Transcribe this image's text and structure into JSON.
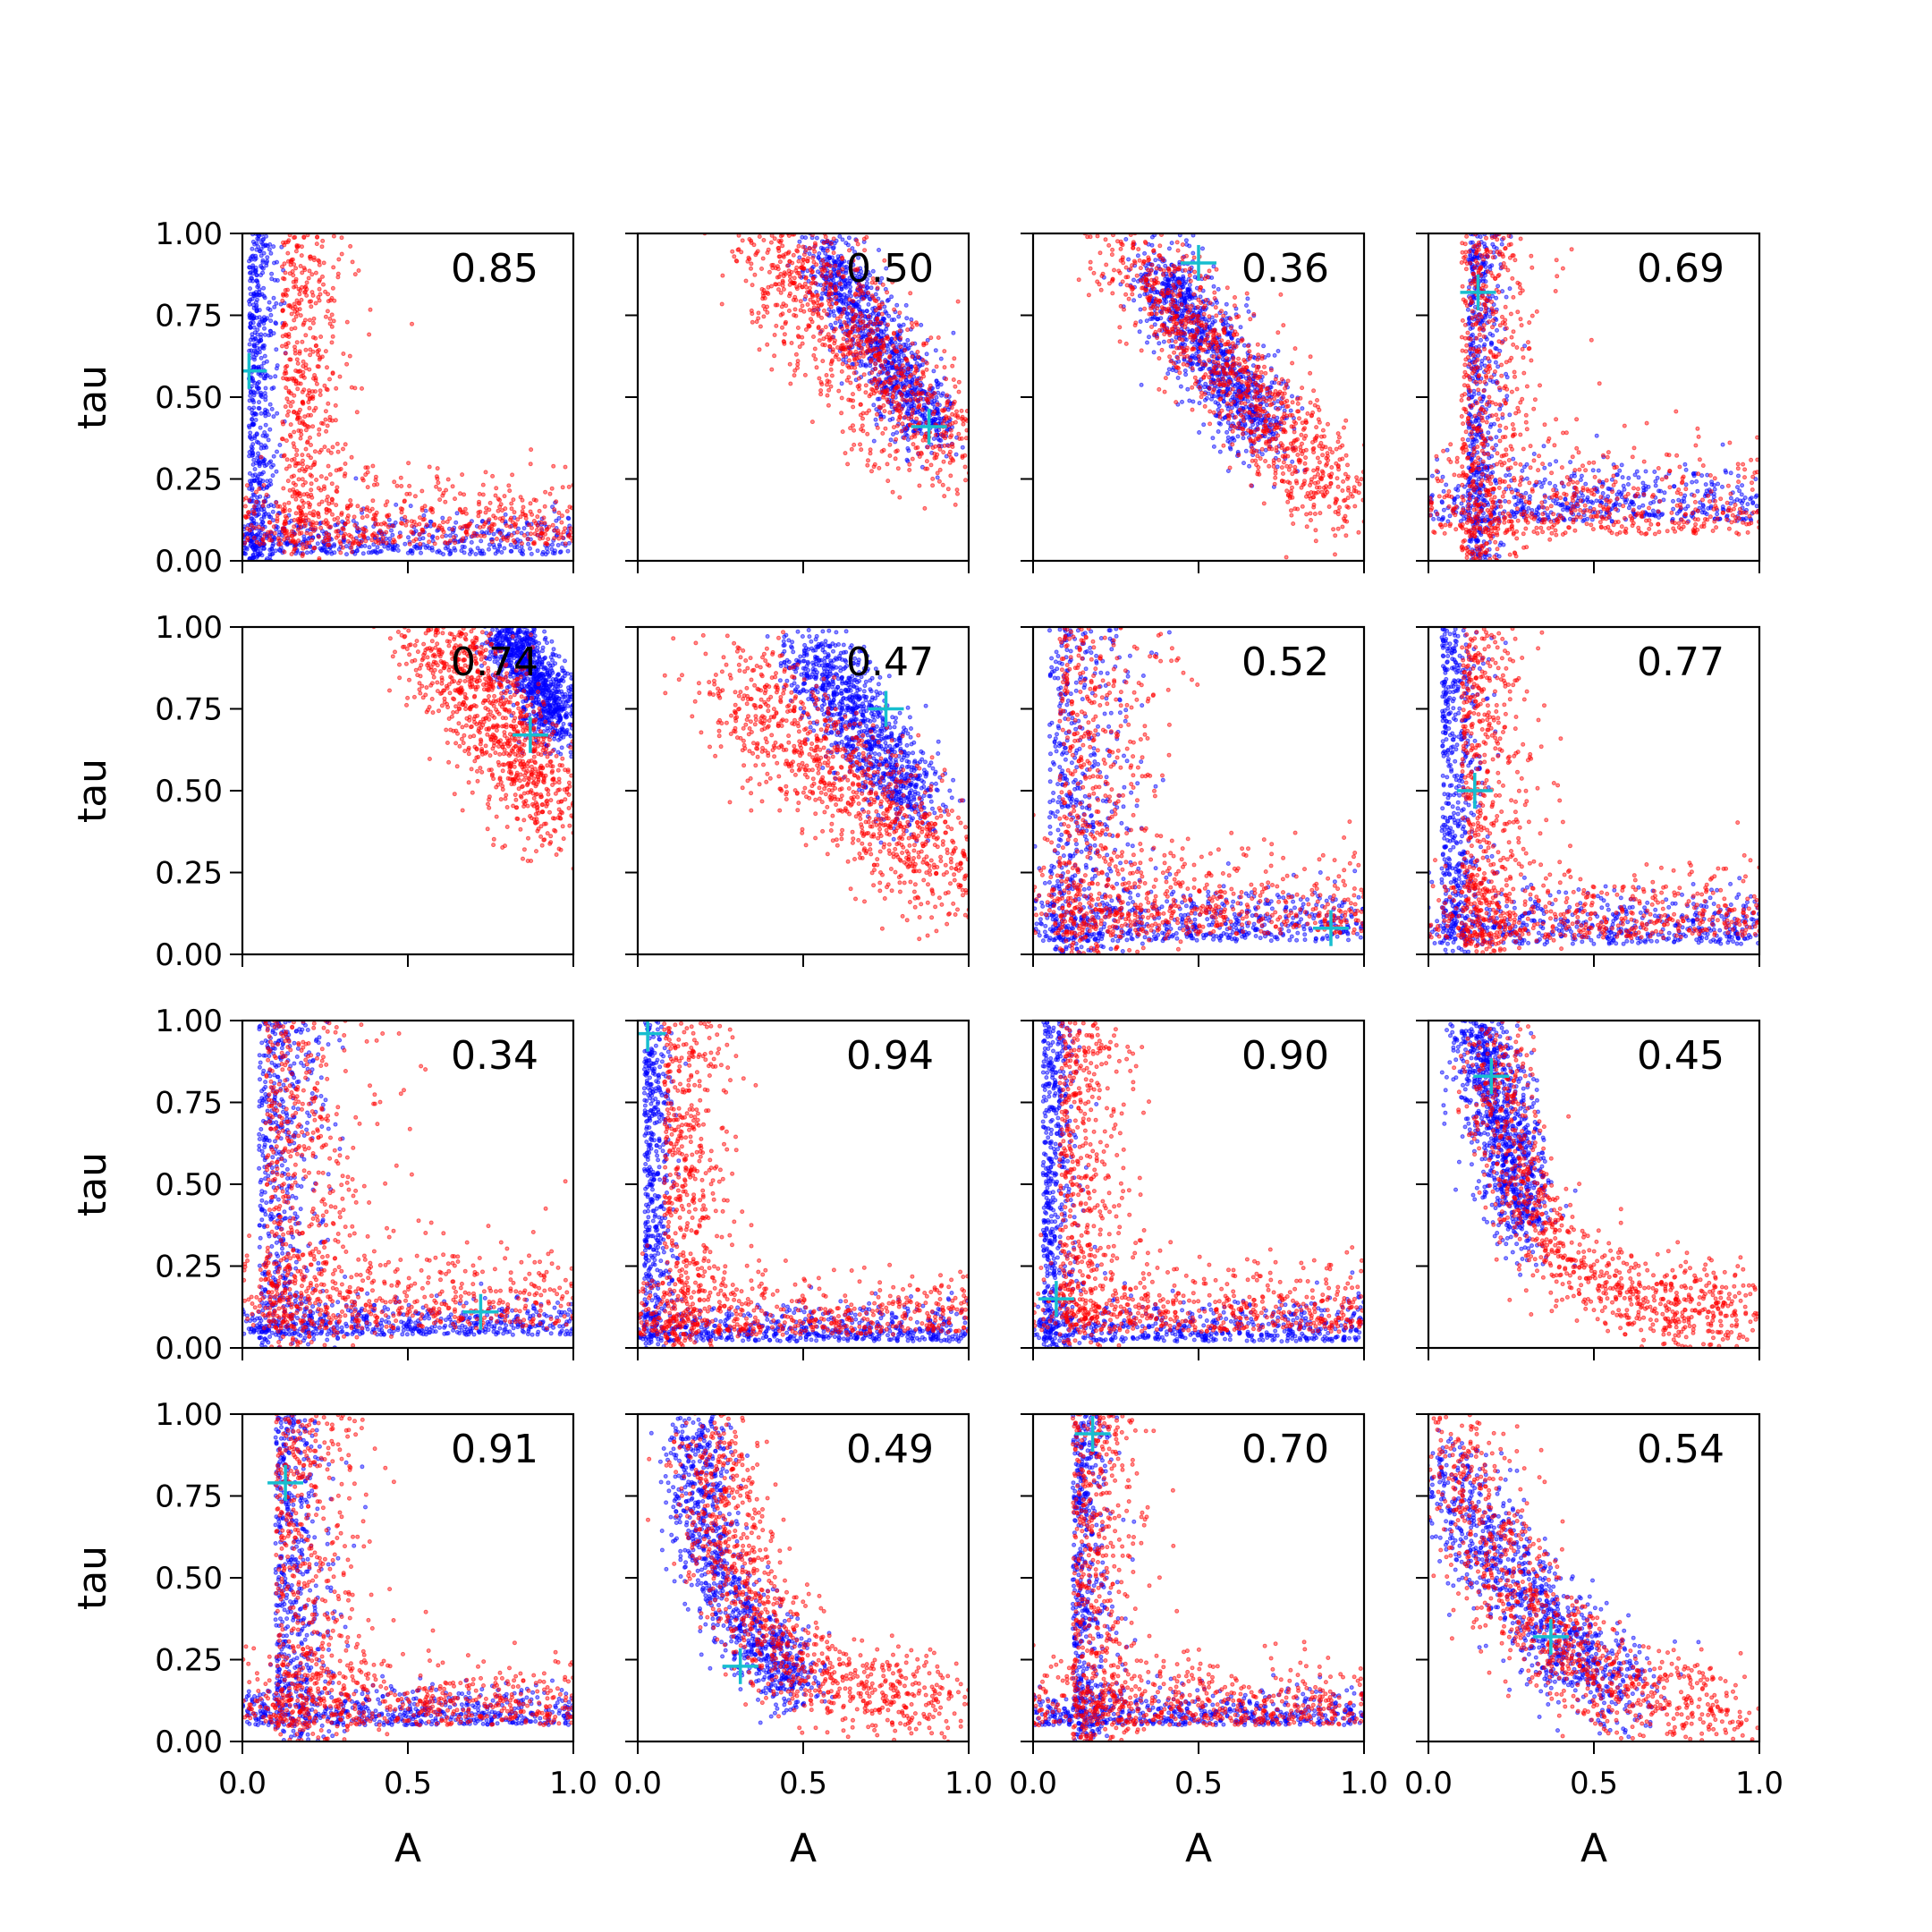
{
  "chart_data": {
    "type": "scatter",
    "layout": "4x4 grid of scatter panels",
    "xlabel": "A",
    "ylabel": "tau",
    "xlim": [
      0.0,
      1.0
    ],
    "ylim": [
      0.0,
      1.0
    ],
    "xticks": [
      "0.0",
      "0.5",
      "1.0"
    ],
    "yticks": [
      "0.00",
      "0.25",
      "0.50",
      "0.75",
      "1.00"
    ],
    "series_colors": {
      "blue": "#0000ff",
      "red": "#ff0000",
      "marker": "#17becf"
    },
    "grid": false,
    "legend": "none",
    "points_per_series_per_panel": 1000,
    "panels": [
      {
        "annotation": "0.85",
        "marker": [
          0.02,
          0.58
        ],
        "blue": {
          "shape": "L",
          "a": 0.02,
          "t": 0.02,
          "sx": 0.04,
          "sy": 0.06
        },
        "red": {
          "shape": "L",
          "a": 0.12,
          "t": 0.05,
          "sx": 0.1,
          "sy": 0.1
        }
      },
      {
        "annotation": "0.50",
        "marker": [
          0.88,
          0.41
        ],
        "blue": {
          "shape": "band",
          "x1": 0.55,
          "y1": 0.95,
          "x2": 0.9,
          "y2": 0.38,
          "sx": 0.05,
          "sy": 0.05
        },
        "red": {
          "shape": "band",
          "x1": 0.38,
          "y1": 1.0,
          "x2": 0.97,
          "y2": 0.3,
          "sx": 0.09,
          "sy": 0.09
        }
      },
      {
        "annotation": "0.36",
        "marker": [
          0.5,
          0.91
        ],
        "blue": {
          "shape": "band",
          "x1": 0.38,
          "y1": 0.9,
          "x2": 0.7,
          "y2": 0.38,
          "sx": 0.06,
          "sy": 0.06
        },
        "red": {
          "shape": "band",
          "x1": 0.3,
          "y1": 0.95,
          "x2": 0.95,
          "y2": 0.15,
          "sx": 0.08,
          "sy": 0.07
        }
      },
      {
        "annotation": "0.69",
        "marker": [
          0.15,
          0.82
        ],
        "blue": {
          "shape": "L",
          "a": 0.12,
          "t": 0.12,
          "sx": 0.05,
          "sy": 0.08
        },
        "red": {
          "shape": "L",
          "a": 0.1,
          "t": 0.08,
          "sx": 0.12,
          "sy": 0.12
        }
      },
      {
        "annotation": "0.74",
        "marker": [
          0.87,
          0.67
        ],
        "blue": {
          "shape": "band",
          "x1": 0.78,
          "y1": 1.0,
          "x2": 0.97,
          "y2": 0.7,
          "sx": 0.04,
          "sy": 0.05
        },
        "red": {
          "shape": "band",
          "x1": 0.55,
          "y1": 1.0,
          "x2": 0.97,
          "y2": 0.42,
          "sx": 0.07,
          "sy": 0.09
        }
      },
      {
        "annotation": "0.47",
        "marker": [
          0.75,
          0.75
        ],
        "blue": {
          "shape": "band",
          "x1": 0.5,
          "y1": 0.95,
          "x2": 0.85,
          "y2": 0.45,
          "sx": 0.06,
          "sy": 0.06
        },
        "red": {
          "shape": "band",
          "x1": 0.28,
          "y1": 0.85,
          "x2": 0.97,
          "y2": 0.22,
          "sx": 0.09,
          "sy": 0.09
        }
      },
      {
        "annotation": "0.52",
        "marker": [
          0.9,
          0.08
        ],
        "blue": {
          "shape": "L",
          "a": 0.05,
          "t": 0.04,
          "sx": 0.12,
          "sy": 0.08
        },
        "red": {
          "shape": "L",
          "a": 0.08,
          "t": 0.06,
          "sx": 0.15,
          "sy": 0.12
        }
      },
      {
        "annotation": "0.77",
        "marker": [
          0.14,
          0.5
        ],
        "blue": {
          "shape": "L",
          "a": 0.04,
          "t": 0.03,
          "sx": 0.06,
          "sy": 0.08
        },
        "red": {
          "shape": "L",
          "a": 0.1,
          "t": 0.05,
          "sx": 0.1,
          "sy": 0.1
        }
      },
      {
        "annotation": "0.34",
        "marker": [
          0.72,
          0.11
        ],
        "blue": {
          "shape": "L",
          "a": 0.05,
          "t": 0.04,
          "sx": 0.1,
          "sy": 0.05
        },
        "red": {
          "shape": "L",
          "a": 0.07,
          "t": 0.06,
          "sx": 0.16,
          "sy": 0.12
        }
      },
      {
        "annotation": "0.94",
        "marker": [
          0.03,
          0.96
        ],
        "blue": {
          "shape": "L",
          "a": 0.02,
          "t": 0.02,
          "sx": 0.04,
          "sy": 0.05
        },
        "red": {
          "shape": "L",
          "a": 0.08,
          "t": 0.04,
          "sx": 0.09,
          "sy": 0.09
        }
      },
      {
        "annotation": "0.90",
        "marker": [
          0.07,
          0.15
        ],
        "blue": {
          "shape": "L",
          "a": 0.03,
          "t": 0.02,
          "sx": 0.05,
          "sy": 0.06
        },
        "red": {
          "shape": "L",
          "a": 0.08,
          "t": 0.05,
          "sx": 0.1,
          "sy": 0.1
        }
      },
      {
        "annotation": "0.45",
        "marker": [
          0.19,
          0.83
        ],
        "blue": {
          "shape": "band",
          "x1": 0.15,
          "y1": 0.98,
          "x2": 0.3,
          "y2": 0.35,
          "sx": 0.05,
          "sy": 0.06
        },
        "red": {
          "shape": "curve",
          "pts": [
            [
              0.2,
              0.98
            ],
            [
              0.25,
              0.55
            ],
            [
              0.4,
              0.25
            ],
            [
              0.7,
              0.12
            ],
            [
              0.97,
              0.12
            ]
          ],
          "sx": 0.06,
          "sy": 0.07
        }
      },
      {
        "annotation": "0.91",
        "marker": [
          0.13,
          0.79
        ],
        "blue": {
          "shape": "L",
          "a": 0.1,
          "t": 0.05,
          "sx": 0.08,
          "sy": 0.06
        },
        "red": {
          "shape": "L",
          "a": 0.1,
          "t": 0.05,
          "sx": 0.13,
          "sy": 0.1
        }
      },
      {
        "annotation": "0.49",
        "marker": [
          0.31,
          0.23
        ],
        "blue": {
          "shape": "curve",
          "pts": [
            [
              0.18,
              0.98
            ],
            [
              0.2,
              0.6
            ],
            [
              0.35,
              0.3
            ],
            [
              0.5,
              0.18
            ]
          ],
          "sx": 0.05,
          "sy": 0.06
        },
        "red": {
          "shape": "curve",
          "pts": [
            [
              0.22,
              0.98
            ],
            [
              0.3,
              0.5
            ],
            [
              0.5,
              0.2
            ],
            [
              0.95,
              0.1
            ]
          ],
          "sx": 0.07,
          "sy": 0.07
        }
      },
      {
        "annotation": "0.70",
        "marker": [
          0.18,
          0.94
        ],
        "blue": {
          "shape": "L",
          "a": 0.12,
          "t": 0.05,
          "sx": 0.06,
          "sy": 0.05
        },
        "red": {
          "shape": "L",
          "a": 0.12,
          "t": 0.05,
          "sx": 0.1,
          "sy": 0.09
        }
      },
      {
        "annotation": "0.54",
        "marker": [
          0.37,
          0.32
        ],
        "blue": {
          "shape": "curve",
          "pts": [
            [
              0.05,
              0.85
            ],
            [
              0.2,
              0.55
            ],
            [
              0.4,
              0.3
            ],
            [
              0.6,
              0.15
            ]
          ],
          "sx": 0.07,
          "sy": 0.07
        },
        "red": {
          "shape": "curve",
          "pts": [
            [
              0.05,
              0.95
            ],
            [
              0.25,
              0.45
            ],
            [
              0.5,
              0.18
            ],
            [
              0.95,
              0.05
            ]
          ],
          "sx": 0.09,
          "sy": 0.08
        }
      }
    ]
  }
}
